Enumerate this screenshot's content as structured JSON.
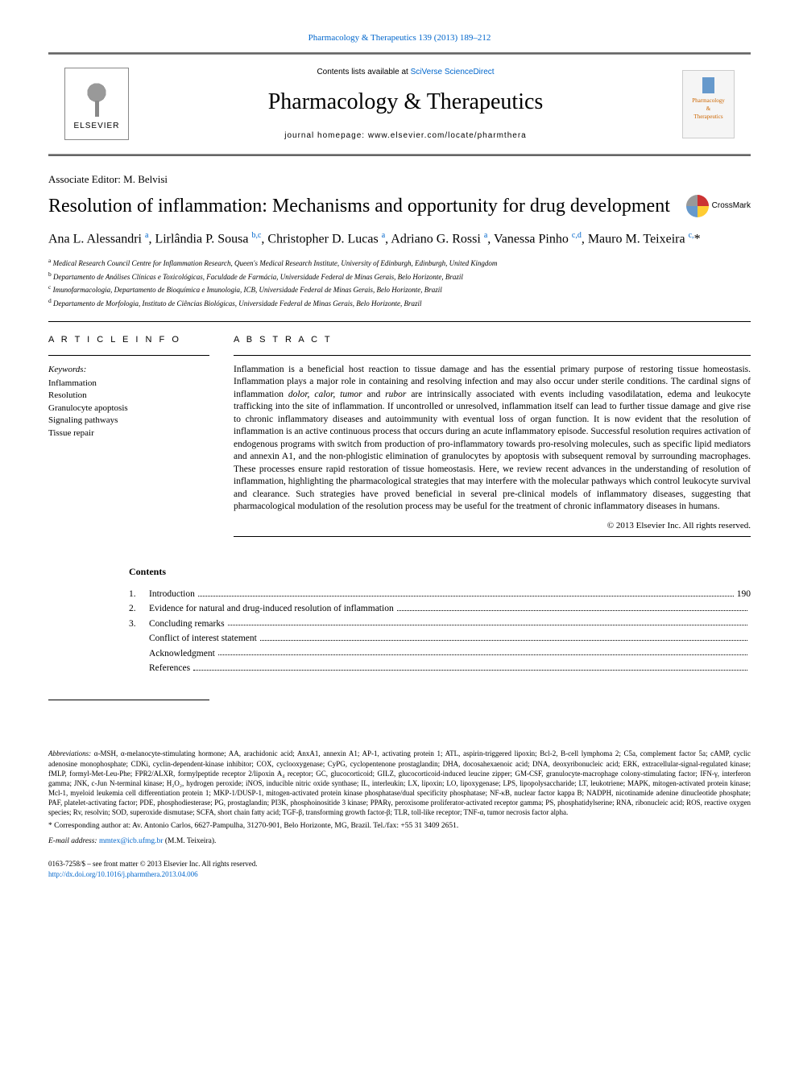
{
  "top_link": "Pharmacology & Therapeutics 139 (2013) 189–212",
  "header": {
    "contents_available": "Contents lists available at",
    "contents_source": "SciVerse ScienceDirect",
    "journal_name": "Pharmacology & Therapeutics",
    "homepage_label": "journal homepage:",
    "homepage_url": "www.elsevier.com/locate/pharmthera",
    "elsevier": "ELSEVIER",
    "cover_text1": "Pharmacology",
    "cover_text2": "&",
    "cover_text3": "Therapeutics"
  },
  "associate_editor": "Associate Editor: M. Belvisi",
  "title": "Resolution of inflammation: Mechanisms and opportunity for drug development",
  "crossmark": "CrossMark",
  "authors_html": "Ana L. Alessandri <sup>a</sup>, Lirlândia P. Sousa <sup>b,c</sup>, Christopher D. Lucas <sup>a</sup>, Adriano G. Rossi <sup>a</sup>, Vanessa Pinho <sup>c,d</sup>, Mauro M. Teixeira <sup>c,</sup>*",
  "affiliations": [
    {
      "sup": "a",
      "text": "Medical Research Council Centre for Inflammation Research, Queen's Medical Research Institute, University of Edinburgh, Edinburgh, United Kingdom"
    },
    {
      "sup": "b",
      "text": "Departamento de Análises Clínicas e Toxicológicas, Faculdade de Farmácia, Universidade Federal de Minas Gerais, Belo Horizonte, Brazil"
    },
    {
      "sup": "c",
      "text": "Imunofarmacologia, Departamento de Bioquímica e Imunologia, ICB, Universidade Federal de Minas Gerais, Belo Horizonte, Brazil"
    },
    {
      "sup": "d",
      "text": "Departamento de Morfologia, Instituto de Ciências Biológicas, Universidade Federal de Minas Gerais, Belo Horizonte, Brazil"
    }
  ],
  "article_info_heading": "A R T I C L E   I N F O",
  "abstract_heading": "A B S T R A C T",
  "keywords_label": "Keywords:",
  "keywords": [
    "Inflammation",
    "Resolution",
    "Granulocyte apoptosis",
    "Signaling pathways",
    "Tissue repair"
  ],
  "abstract": "Inflammation is a beneficial host reaction to tissue damage and has the essential primary purpose of restoring tissue homeostasis. Inflammation plays a major role in containing and resolving infection and may also occur under sterile conditions. The cardinal signs of inflammation dolor, calor, tumor and rubor are intrinsically associated with events including vasodilatation, edema and leukocyte trafficking into the site of inflammation. If uncontrolled or unresolved, inflammation itself can lead to further tissue damage and give rise to chronic inflammatory diseases and autoimmunity with eventual loss of organ function. It is now evident that the resolution of inflammation is an active continuous process that occurs during an acute inflammatory episode. Successful resolution requires activation of endogenous programs with switch from production of pro-inflammatory towards pro-resolving molecules, such as specific lipid mediators and annexin A1, and the non-phlogistic elimination of granulocytes by apoptosis with subsequent removal by surrounding macrophages. These processes ensure rapid restoration of tissue homeostasis. Here, we review recent advances in the understanding of resolution of inflammation, highlighting the pharmacological strategies that may interfere with the molecular pathways which control leukocyte survival and clearance. Such strategies have proved beneficial in several pre-clinical models of inflammatory diseases, suggesting that pharmacological modulation of the resolution process may be useful for the treatment of chronic inflammatory diseases in humans.",
  "copyright": "© 2013 Elsevier Inc. All rights reserved.",
  "contents_heading": "Contents",
  "toc": [
    {
      "num": "1.",
      "label": "Introduction",
      "page": "190"
    },
    {
      "num": "2.",
      "label": "Evidence for natural and drug-induced resolution of inflammation",
      "page": ""
    },
    {
      "num": "3.",
      "label": "Concluding remarks",
      "page": ""
    },
    {
      "num": "",
      "label": "Conflict of interest statement",
      "page": ""
    },
    {
      "num": "",
      "label": "Acknowledgment",
      "page": ""
    },
    {
      "num": "",
      "label": "References",
      "page": ""
    }
  ],
  "abbreviations_label": "Abbreviations:",
  "abbreviations": "α-MSH, α-melanocyte-stimulating hormone; AA, arachidonic acid; AnxA1, annexin A1; AP-1, activating protein 1; ATL, aspirin-triggered lipoxin; Bcl-2, B-cell lymphoma 2; C5a, complement factor 5a; cAMP, cyclic adenosine monophosphate; CDKi, cyclin-dependent-kinase inhibitor; COX, cyclooxygenase; CyPG, cyclopentenone prostaglandin; DHA, docosahexaenoic acid; DNA, deoxyribonucleic acid; ERK, extracellular-signal-regulated kinase; fMLP, formyl-Met-Leu-Phe; FPR2/ALXR, formylpeptide receptor 2/lipoxin A₄ receptor; GC, glucocorticoid; GILZ, glucocorticoid-induced leucine zipper; GM-CSF, granulocyte-macrophage colony-stimulating factor; IFN-γ, interferon gamma; JNK, c-Jun N-terminal kinase; H₂O₂, hydrogen peroxide; iNOS, inducible nitric oxide synthase; IL, interleukin; LX, lipoxin; LO, lipoxygenase; LPS, lipopolysaccharide; LT, leukotriene; MAPK, mitogen-activated protein kinase; Mcl-1, myeloid leukemia cell differentiation protein 1; MKP-1/DUSP-1, mitogen-activated protein kinase phosphatase/dual specificity phosphatase; NF-κB, nuclear factor kappa B; NADPH, nicotinamide adenine dinucleotide phosphate; PAF, platelet-activating factor; PDE, phosphodiesterase; PG, prostaglandin; PI3K, phosphoinositide 3 kinase; PPARγ, peroxisome proliferator-activated receptor gamma; PS, phosphatidylserine; RNA, ribonucleic acid; ROS, reactive oxygen species; Rv, resolvin; SOD, superoxide dismutase; SCFA, short chain fatty acid; TGF-β, transforming growth factor-β; TLR, toll-like receptor; TNF-α, tumor necrosis factor alpha.",
  "corresponding": "* Corresponding author at: Av. Antonio Carlos, 6627-Pampulha, 31270-901, Belo Horizonte, MG, Brazil. Tel./fax: +55 31 3409 2651.",
  "email_label": "E-mail address:",
  "email": "mmtex@icb.ufmg.br",
  "email_name": "(M.M. Teixeira).",
  "footer": {
    "line1": "0163-7258/$ – see front matter © 2013 Elsevier Inc. All rights reserved.",
    "doi": "http://dx.doi.org/10.1016/j.pharmthera.2013.04.006"
  }
}
